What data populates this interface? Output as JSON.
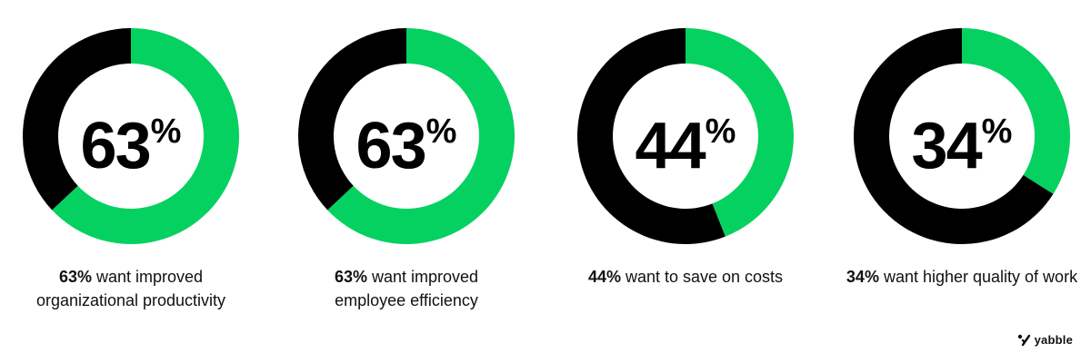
{
  "colors": {
    "accent": "#05D161",
    "remainder": "#000000",
    "text": "#111111"
  },
  "chart_data": [
    {
      "type": "pie",
      "value": 63,
      "big_number": "63",
      "unit": "%",
      "caption_bold": "63%",
      "caption_rest": " want improved organizational productivity"
    },
    {
      "type": "pie",
      "value": 63,
      "big_number": "63",
      "unit": "%",
      "caption_bold": "63%",
      "caption_rest": " want improved employee efficiency"
    },
    {
      "type": "pie",
      "value": 44,
      "big_number": "44",
      "unit": "%",
      "caption_bold": "44%",
      "caption_rest": " want to save on costs"
    },
    {
      "type": "pie",
      "value": 34,
      "big_number": "34",
      "unit": "%",
      "caption_bold": "34%",
      "caption_rest": " want higher quality of work"
    }
  ],
  "brand": {
    "name": "yabble",
    "icon": "yabble-logo-icon"
  }
}
